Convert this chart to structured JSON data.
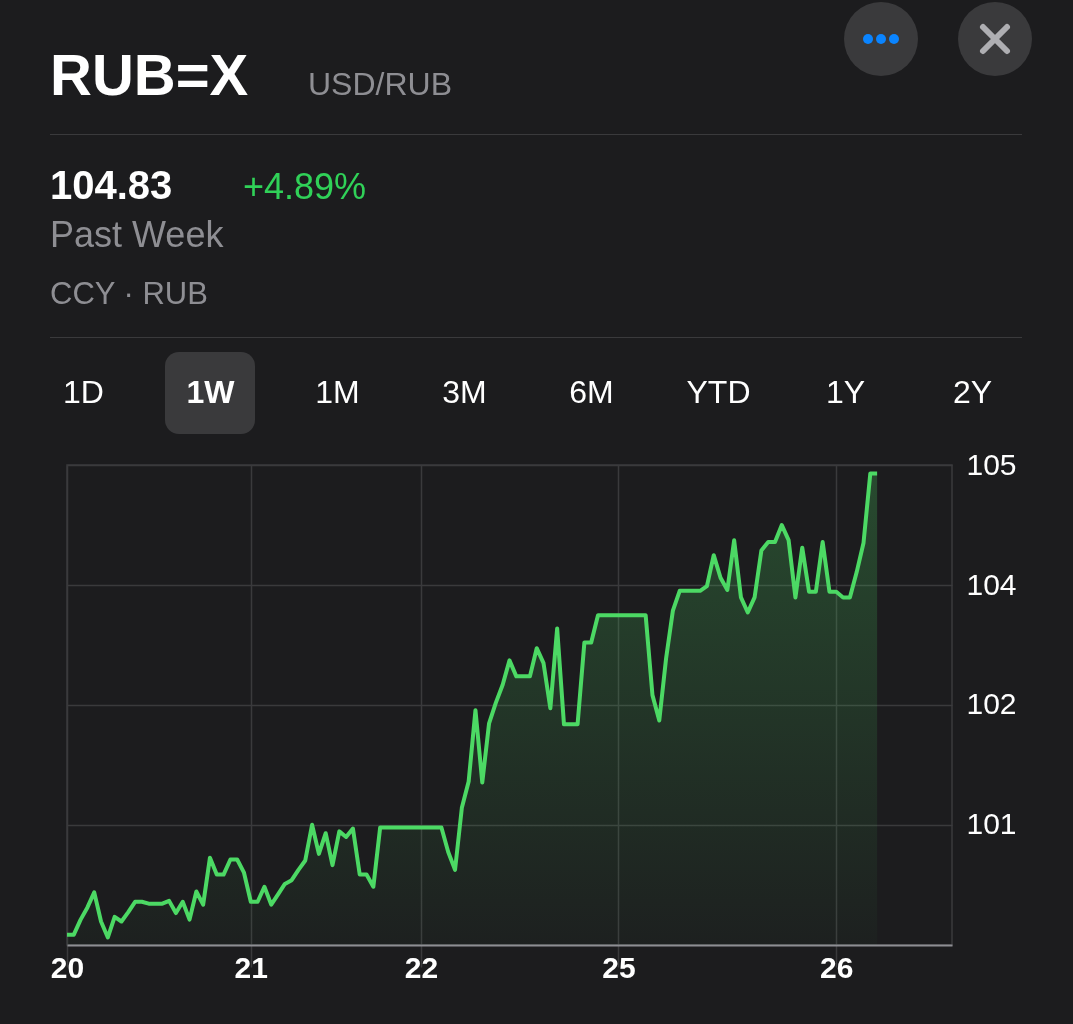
{
  "chart_data": {
    "type": "area",
    "title": "RUB=X",
    "subtitle": "USD/RUB",
    "annotations": [
      "104.83",
      "+4.89%",
      "Past Week",
      "CCY · RUB",
      "1D",
      "1W",
      "1M",
      "3M",
      "6M",
      "YTD",
      "1Y",
      "2Y"
    ],
    "categories": [
      "20",
      null,
      null,
      null,
      null,
      null,
      null,
      null,
      null,
      null,
      null,
      null,
      null,
      null,
      null,
      null,
      null,
      null,
      null,
      null,
      null,
      null,
      null,
      null,
      null,
      null,
      null,
      "21",
      null,
      null,
      null,
      null,
      null,
      null,
      null,
      null,
      null,
      null,
      null,
      null,
      null,
      null,
      null,
      null,
      null,
      null,
      null,
      null,
      null,
      null,
      null,
      null,
      "22",
      null,
      null,
      null,
      null,
      null,
      null,
      null,
      null,
      null,
      null,
      null,
      null,
      null,
      null,
      null,
      null,
      null,
      null,
      null,
      null,
      null,
      null,
      null,
      null,
      null,
      null,
      null,
      null,
      "25",
      null,
      null,
      null,
      null,
      null,
      null,
      null,
      null,
      null,
      null,
      null,
      null,
      null,
      null,
      null,
      null,
      null,
      null,
      null,
      null,
      null,
      null,
      null,
      null,
      null,
      null,
      null,
      null,
      null,
      null,
      null,
      "26",
      null,
      null,
      null,
      null,
      null,
      null,
      null,
      null,
      null,
      null,
      null,
      null,
      null,
      null,
      null,
      null,
      null
    ],
    "series": [
      {
        "color": "#4cd964",
        "values": [
          99.92,
          99.92,
          100.08,
          100.21,
          100.37,
          100.06,
          99.89,
          100.11,
          100.06,
          100.16,
          100.27,
          100.27,
          100.25,
          100.25,
          100.25,
          100.28,
          100.15,
          100.27,
          100.08,
          100.38,
          100.24,
          100.74,
          100.56,
          100.56,
          100.72,
          100.72,
          100.58,
          100.27,
          100.27,
          100.43,
          100.24,
          100.35,
          100.46,
          100.5,
          100.61,
          100.71,
          101.09,
          100.78,
          101,
          100.66,
          101.02,
          100.96,
          101.05,
          100.56,
          100.56,
          100.43,
          101.06,
          101.06,
          101.06,
          101.06,
          101.06,
          101.06,
          101.06,
          101.06,
          101.06,
          101.06,
          100.8,
          100.61,
          101.27,
          101.55,
          102.31,
          101.54,
          102.17,
          102.39,
          102.58,
          102.84,
          102.67,
          102.67,
          102.67,
          102.97,
          102.81,
          102.33,
          103.18,
          102.16,
          102.16,
          102.16,
          103.03,
          103.03,
          103.32,
          103.32,
          103.32,
          103.32,
          103.32,
          103.32,
          103.32,
          103.32,
          102.47,
          102.2,
          102.86,
          103.37,
          103.58,
          103.58,
          103.58,
          103.58,
          103.63,
          103.96,
          103.72,
          103.59,
          104.12,
          103.51,
          103.35,
          103.51,
          104.01,
          104.1,
          104.1,
          104.28,
          104.12,
          103.51,
          104.04,
          103.57,
          103.57,
          104.1,
          103.57,
          103.57,
          103.51,
          103.51,
          103.78,
          104.09,
          104.83,
          104.83,
          null,
          null,
          null,
          null,
          null,
          null,
          null,
          null,
          null,
          null,
          null
        ]
      }
    ],
    "ylim": [
      99.81,
      104.92
    ],
    "yticks": [
      {
        "value": 101.09,
        "label": "101"
      },
      {
        "value": 102.37,
        "label": "102"
      },
      {
        "value": 103.64,
        "label": "104"
      },
      {
        "value": 104.92,
        "label": "105"
      }
    ],
    "grid": true
  }
}
